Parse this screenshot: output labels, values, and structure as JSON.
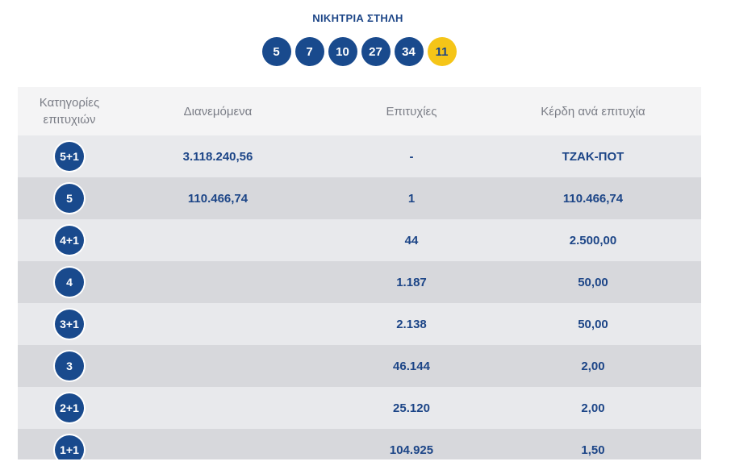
{
  "header": {
    "title": "ΝΙΚΗΤΡΙΑ ΣΤΗΛΗ"
  },
  "winning_numbers": [
    "5",
    "7",
    "10",
    "27",
    "34"
  ],
  "bonus_number": "11",
  "table": {
    "columns": [
      "Κατηγορίες επιτυχιών",
      "Διανεμόμενα",
      "Επιτυχίες",
      "Κέρδη ανά επιτυχία"
    ],
    "rows": [
      {
        "category": "5+1",
        "distributed": "3.118.240,56",
        "winners": "-",
        "prize": "ΤΖΑΚ-ΠΟΤ"
      },
      {
        "category": "5",
        "distributed": "110.466,74",
        "winners": "1",
        "prize": "110.466,74"
      },
      {
        "category": "4+1",
        "distributed": "",
        "winners": "44",
        "prize": "2.500,00"
      },
      {
        "category": "4",
        "distributed": "",
        "winners": "1.187",
        "prize": "50,00"
      },
      {
        "category": "3+1",
        "distributed": "",
        "winners": "2.138",
        "prize": "50,00"
      },
      {
        "category": "3",
        "distributed": "",
        "winners": "46.144",
        "prize": "2,00"
      },
      {
        "category": "2+1",
        "distributed": "",
        "winners": "25.120",
        "prize": "2,00"
      },
      {
        "category": "1+1",
        "distributed": "",
        "winners": "104.925",
        "prize": "1,50"
      }
    ]
  },
  "colors": {
    "primary": "#1c4587",
    "ball": "#194a8d",
    "bonus": "#f5c518",
    "row_light": "#e8e9ec",
    "row_dark": "#d7d8dc"
  }
}
